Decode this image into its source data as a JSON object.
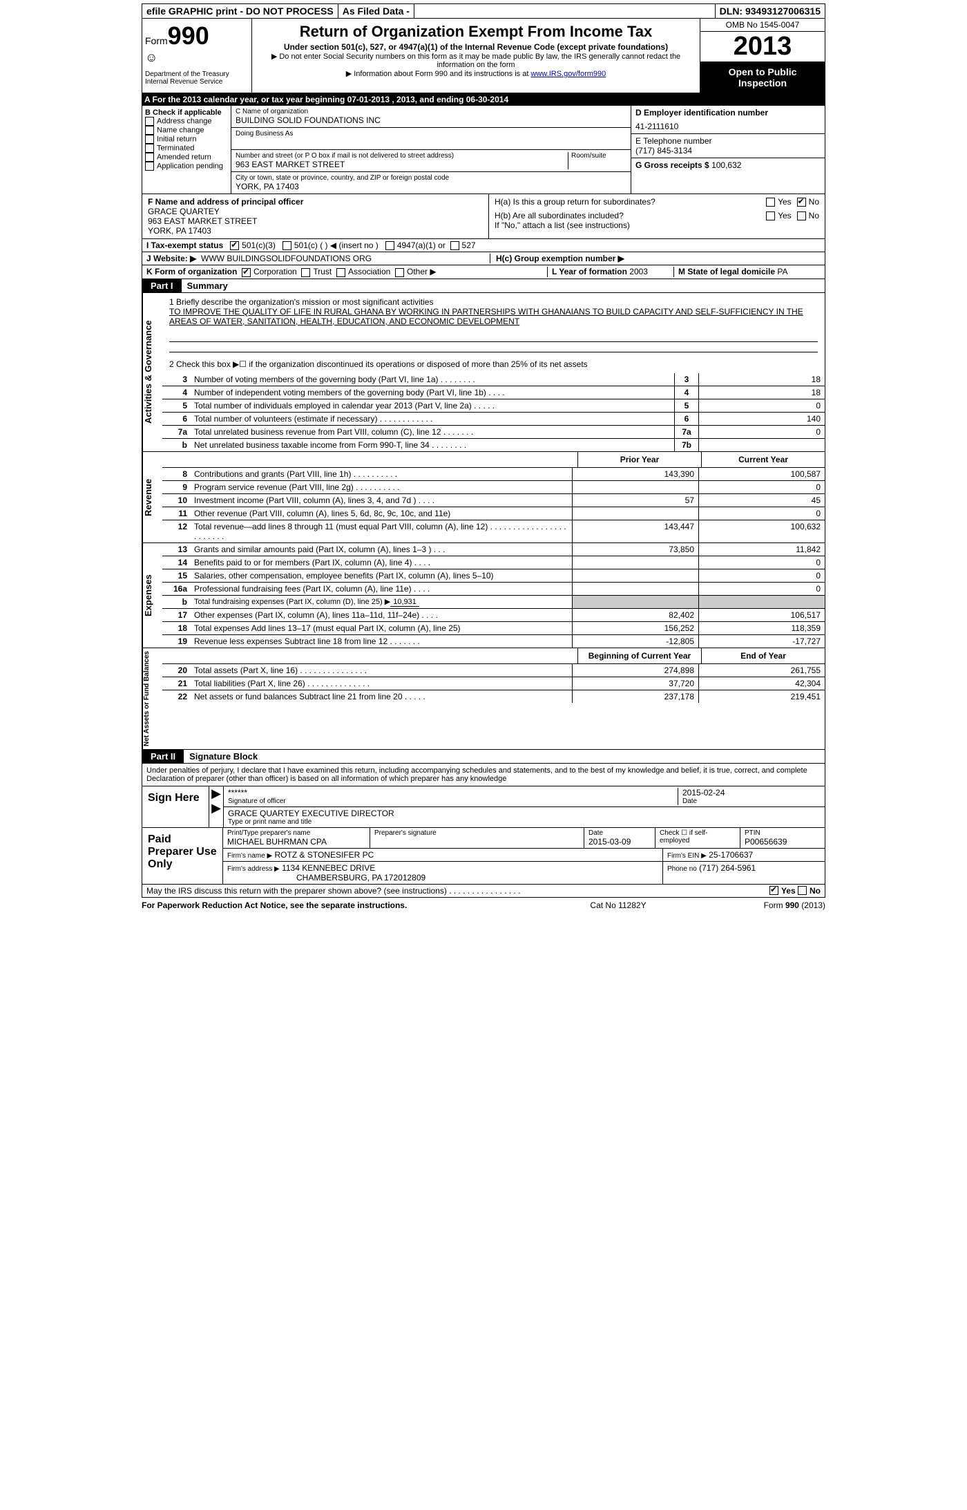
{
  "topbar": {
    "efile": "efile GRAPHIC print - DO NOT PROCESS",
    "asfiled": "As Filed Data -",
    "dln_label": "DLN:",
    "dln": "93493127006315"
  },
  "header": {
    "form_word": "Form",
    "form_num": "990",
    "dept1": "Department of the Treasury",
    "dept2": "Internal Revenue Service",
    "title": "Return of Organization Exempt From Income Tax",
    "sub1": "Under section 501(c), 527, or 4947(a)(1) of the Internal Revenue Code (except private foundations)",
    "sub2": "▶ Do not enter Social Security numbers on this form as it may be made public  By law, the IRS generally cannot redact the information on the form",
    "sub3_pre": "▶ Information about Form 990 and its instructions is at ",
    "sub3_link": "www.IRS.gov/form990",
    "omb": "OMB No  1545-0047",
    "year": "2013",
    "openpub": "Open to Public Inspection"
  },
  "row_a": "A  For the 2013 calendar year, or tax year beginning 07-01-2013     , 2013, and ending 06-30-2014",
  "col_b": {
    "title": "B  Check if applicable",
    "items": [
      "Address change",
      "Name change",
      "Initial return",
      "Terminated",
      "Amended return",
      "Application pending"
    ]
  },
  "col_c": {
    "name_lbl": "C Name of organization",
    "name": "BUILDING SOLID FOUNDATIONS INC",
    "dba_lbl": "Doing Business As",
    "addr_lbl": "Number and street (or P O  box if mail is not delivered to street address)",
    "room_lbl": "Room/suite",
    "addr": "963 EAST MARKET STREET",
    "city_lbl": "City or town, state or province, country, and ZIP or foreign postal code",
    "city": "YORK, PA  17403"
  },
  "col_d": {
    "ein_lbl": "D Employer identification number",
    "ein": "41-2111610",
    "tel_lbl": "E Telephone number",
    "tel": "(717) 845-3134",
    "gross_lbl": "G Gross receipts $",
    "gross": "100,632"
  },
  "col_f": {
    "lbl": "F  Name and address of principal officer",
    "name": "GRACE QUARTEY",
    "addr1": "963 EAST MARKET STREET",
    "addr2": "YORK, PA  17403"
  },
  "col_h": {
    "ha": "H(a)  Is this a group return for subordinates?",
    "hb": "H(b)  Are all subordinates included?",
    "hb_note": "If \"No,\" attach a list  (see instructions)",
    "hc_lbl": "H(c)   Group exemption number ▶",
    "yes": "Yes",
    "no": "No"
  },
  "line_i": {
    "lbl": "I   Tax-exempt status",
    "o1": "501(c)(3)",
    "o2": "501(c) (  ) ◀ (insert no )",
    "o3": "4947(a)(1) or",
    "o4": "527"
  },
  "line_j": {
    "lbl": "J   Website: ▶",
    "val": "WWW BUILDINGSOLIDFOUNDATIONS ORG"
  },
  "line_k": {
    "lbl": "K Form of organization",
    "corp": "Corporation",
    "trust": "Trust",
    "assoc": "Association",
    "other": "Other ▶",
    "l_lbl": "L Year of formation",
    "l_val": "2003",
    "m_lbl": "M State of legal domicile",
    "m_val": "PA"
  },
  "part1": {
    "label": "Part I",
    "title": "Summary"
  },
  "summary": {
    "q1_lbl": "1   Briefly describe the organization's mission or most significant activities",
    "q1_val": "TO IMPROVE THE QUALITY OF LIFE IN RURAL GHANA BY WORKING IN PARTNERSHIPS WITH GHANAIANS TO BUILD CAPACITY AND SELF-SUFFICIENCY IN THE AREAS OF WATER, SANITATION, HEALTH, EDUCATION, AND ECONOMIC DEVELOPMENT",
    "q2": "2   Check this box ▶☐ if the organization discontinued its operations or disposed of more than 25% of its net assets",
    "rows": [
      {
        "n": "3",
        "lbl": "Number of voting members of the governing body (Part VI, line 1a)     .    .    .    .    .    .    .    .",
        "box": "3",
        "val": "18"
      },
      {
        "n": "4",
        "lbl": "Number of independent voting members of the governing body (Part VI, line 1b)    .    .    .    .",
        "box": "4",
        "val": "18"
      },
      {
        "n": "5",
        "lbl": "Total number of individuals employed in calendar year 2013 (Part V, line 2a)    .    .    .    .    .",
        "box": "5",
        "val": "0"
      },
      {
        "n": "6",
        "lbl": "Total number of volunteers (estimate if necessary)    .    .    .    .    .    .    .    .    .    .    .    .",
        "box": "6",
        "val": "140"
      },
      {
        "n": "7a",
        "lbl": "Total unrelated business revenue from Part VIII, column (C), line 12    .    .    .    .    .    .    .",
        "box": "7a",
        "val": "0"
      },
      {
        "n": "b",
        "lbl": "Net unrelated business taxable income from Form 990-T, line 34    .    .    .    .    .    .    .    .",
        "box": "7b",
        "val": ""
      }
    ],
    "prior_hdr": "Prior Year",
    "curr_hdr": "Current Year"
  },
  "revenue": {
    "side": "Revenue",
    "rows": [
      {
        "n": "8",
        "lbl": "Contributions and grants (Part VIII, line 1h)    .    .    .    .    .    .    .    .    .    .",
        "py": "143,390",
        "cy": "100,587"
      },
      {
        "n": "9",
        "lbl": "Program service revenue (Part VIII, line 2g)    .    .    .    .    .    .    .    .    .    .",
        "py": "",
        "cy": "0"
      },
      {
        "n": "10",
        "lbl": "Investment income (Part VIII, column (A), lines 3, 4, and 7d )    .    .    .    .",
        "py": "57",
        "cy": "45"
      },
      {
        "n": "11",
        "lbl": "Other revenue (Part VIII, column (A), lines 5, 6d, 8c, 9c, 10c, and 11e)",
        "py": "",
        "cy": "0"
      },
      {
        "n": "12",
        "lbl": "Total revenue—add lines 8 through 11 (must equal Part VIII, column (A), line 12) .    .    .    .    .    .    .    .    .    .    .    .    .    .    .    .    .    .    .    .    .    .    .    .",
        "py": "143,447",
        "cy": "100,632"
      }
    ]
  },
  "expenses": {
    "side": "Expenses",
    "rows": [
      {
        "n": "13",
        "lbl": "Grants and similar amounts paid (Part IX, column (A), lines 1–3 )   .    .    .",
        "py": "73,850",
        "cy": "11,842"
      },
      {
        "n": "14",
        "lbl": "Benefits paid to or for members (Part IX, column (A), line 4)    .    .    .    .",
        "py": "",
        "cy": "0"
      },
      {
        "n": "15",
        "lbl": "Salaries, other compensation, employee benefits (Part IX, column (A), lines 5–10)",
        "py": "",
        "cy": "0"
      },
      {
        "n": "16a",
        "lbl": "Professional fundraising fees (Part IX, column (A), line 11e)    .    .    .    .",
        "py": "",
        "cy": "0"
      },
      {
        "n": "b",
        "lbl": "Total fundraising expenses (Part IX, column (D), line 25) ▶",
        "inline_val": "10,931",
        "py": null,
        "cy": null
      },
      {
        "n": "17",
        "lbl": "Other expenses (Part IX, column (A), lines 11a–11d, 11f–24e)    .    .    .    .",
        "py": "82,402",
        "cy": "106,517"
      },
      {
        "n": "18",
        "lbl": "Total expenses  Add lines 13–17 (must equal Part IX, column (A), line 25)",
        "py": "156,252",
        "cy": "118,359"
      },
      {
        "n": "19",
        "lbl": "Revenue less expenses  Subtract line 18 from line 12    .    .    .    .    .    .    .",
        "py": "-12,805",
        "cy": "-17,727"
      }
    ]
  },
  "netassets": {
    "side": "Net Assets or Fund Balances",
    "hdr1": "Beginning of Current Year",
    "hdr2": "End of Year",
    "rows": [
      {
        "n": "20",
        "lbl": "Total assets (Part X, line 16)    .    .    .    .    .    .    .    .    .    .    .    .    .    .    .",
        "py": "274,898",
        "cy": "261,755"
      },
      {
        "n": "21",
        "lbl": "Total liabilities (Part X, line 26)    .    .    .    .    .    .    .    .    .    .    .    .    .    .",
        "py": "37,720",
        "cy": "42,304"
      },
      {
        "n": "22",
        "lbl": "Net assets or fund balances  Subtract line 21 from line 20    .    .    .    .    .",
        "py": "237,178",
        "cy": "219,451"
      }
    ]
  },
  "part2": {
    "label": "Part II",
    "title": "Signature Block"
  },
  "sig": {
    "decl": "Under penalties of perjury, I declare that I have examined this return, including accompanying schedules and statements, and to the best of my knowledge and belief, it is true, correct, and complete  Declaration of preparer (other than officer) is based on all information of which preparer has any knowledge",
    "sign_here": "Sign Here",
    "stars": "******",
    "sig_lbl": "Signature of officer",
    "date_lbl": "Date",
    "date": "2015-02-24",
    "name": "GRACE QUARTEY  EXECUTIVE DIRECTOR",
    "name_lbl": "Type or print name and title"
  },
  "paid": {
    "lbl": "Paid Preparer Use Only",
    "prep_name_lbl": "Print/Type preparer's name",
    "prep_name": "MICHAEL BUHRMAN CPA",
    "prep_sig_lbl": "Preparer's signature",
    "prep_date_lbl": "Date",
    "prep_date": "2015-03-09",
    "check_lbl": "Check ☐ if self-employed",
    "ptin_lbl": "PTIN",
    "ptin": "P00656639",
    "firm_name_lbl": "Firm's name      ▶",
    "firm_name": "ROTZ & STONESIFER PC",
    "firm_ein_lbl": "Firm's EIN ▶",
    "firm_ein": "25-1706637",
    "firm_addr_lbl": "Firm's address ▶",
    "firm_addr1": "1134 KENNEBEC DRIVE",
    "firm_addr2": "CHAMBERSBURG, PA  172012809",
    "phone_lbl": "Phone no",
    "phone": "(717) 264-5961"
  },
  "discuss": {
    "lbl": "May the IRS discuss this return with the preparer shown above? (see instructions)    .    .    .    .    .    .    .    .    .    .    .    .    .    .    .    .",
    "yes": "Yes",
    "no": "No"
  },
  "footer": {
    "left": "For Paperwork Reduction Act Notice, see the separate instructions.",
    "mid": "Cat No  11282Y",
    "right": "Form 990 (2013)"
  },
  "side_labels": {
    "gov": "Activities & Governance"
  }
}
